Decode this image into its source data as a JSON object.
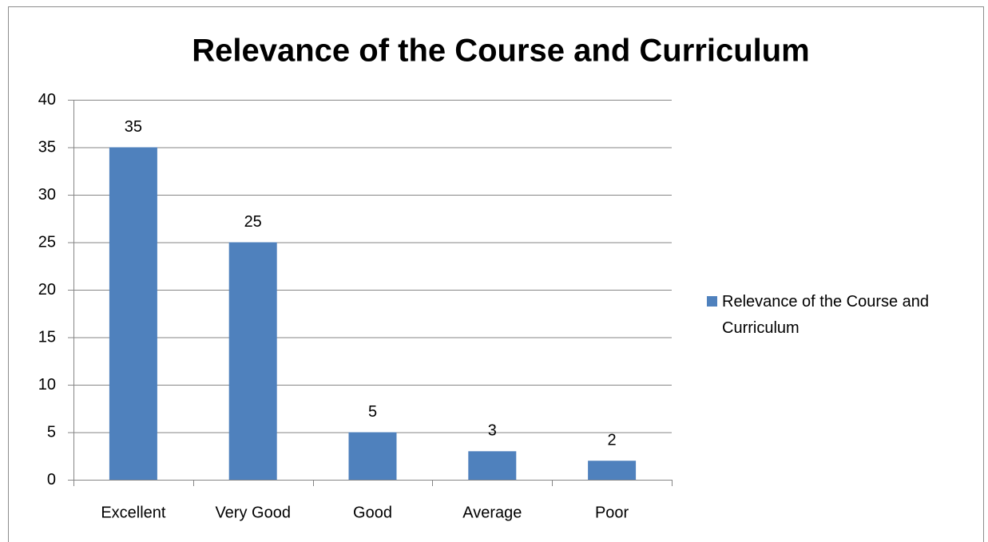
{
  "chart_data": {
    "type": "bar",
    "title": "Relevance of the Course and Curriculum",
    "categories": [
      "Excellent",
      "Very Good",
      "Good",
      "Average",
      "Poor"
    ],
    "series": [
      {
        "name": "Relevance of the Course and Curriculum",
        "color": "#4f81bd",
        "values": [
          35,
          25,
          5,
          3,
          2
        ]
      }
    ],
    "ylim": [
      0,
      40
    ],
    "yticks": [
      0,
      5,
      10,
      15,
      20,
      25,
      30,
      35,
      40
    ],
    "grid": true,
    "legend": "right",
    "data_labels": true
  }
}
